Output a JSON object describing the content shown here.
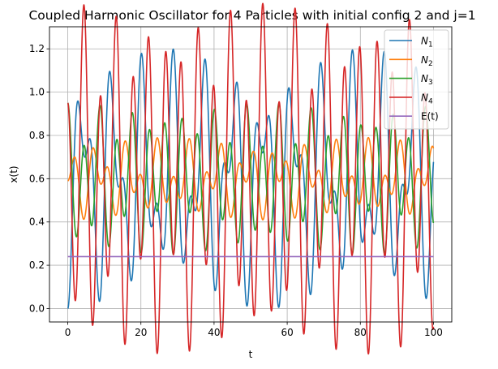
{
  "chart_data": {
    "type": "line",
    "title": "Coupled Harmonic Oscillator for 4 Particles with initial config 2 and j=1",
    "xlabel": "t",
    "ylabel": "x(t)",
    "xlim": [
      -5,
      105
    ],
    "ylim": [
      -0.062,
      1.302
    ],
    "xticks": [
      0,
      20,
      40,
      60,
      80,
      100
    ],
    "yticks": [
      0.0,
      0.2,
      0.4,
      0.6,
      0.8,
      1.0,
      1.2
    ],
    "xtick_labels": [
      "0",
      "20",
      "40",
      "60",
      "80",
      "100"
    ],
    "ytick_labels": [
      "0.0",
      "0.2",
      "0.4",
      "0.6",
      "0.8",
      "1.0",
      "1.2"
    ],
    "grid": true,
    "legend_position": "top-right",
    "x_range": [
      0,
      100
    ],
    "samples": 2000,
    "series": [
      {
        "name": "N",
        "sub": "1",
        "color": "#1f77b4",
        "mean": 0.6,
        "modes": [
          [
            -0.36,
            0.765
          ],
          [
            -0.24,
            1.414
          ]
        ]
      },
      {
        "name": "N",
        "sub": "2",
        "color": "#ff7f0e",
        "mean": 0.6,
        "modes": [
          [
            0.09,
            0.765
          ],
          [
            -0.1,
            1.414
          ]
        ]
      },
      {
        "name": "N",
        "sub": "3",
        "color": "#2ca02c",
        "mean": 0.6,
        "modes": [
          [
            0.1,
            0.765
          ],
          [
            0.25,
            1.414
          ]
        ]
      },
      {
        "name": "N",
        "sub": "4",
        "color": "#d62728",
        "mean": 0.6,
        "modes": [
          [
            -0.23,
            0.765
          ],
          [
            0.58,
            1.414
          ]
        ]
      },
      {
        "name": "E(t)",
        "sub": "",
        "color": "#9467bd",
        "constant": 0.24
      }
    ]
  }
}
